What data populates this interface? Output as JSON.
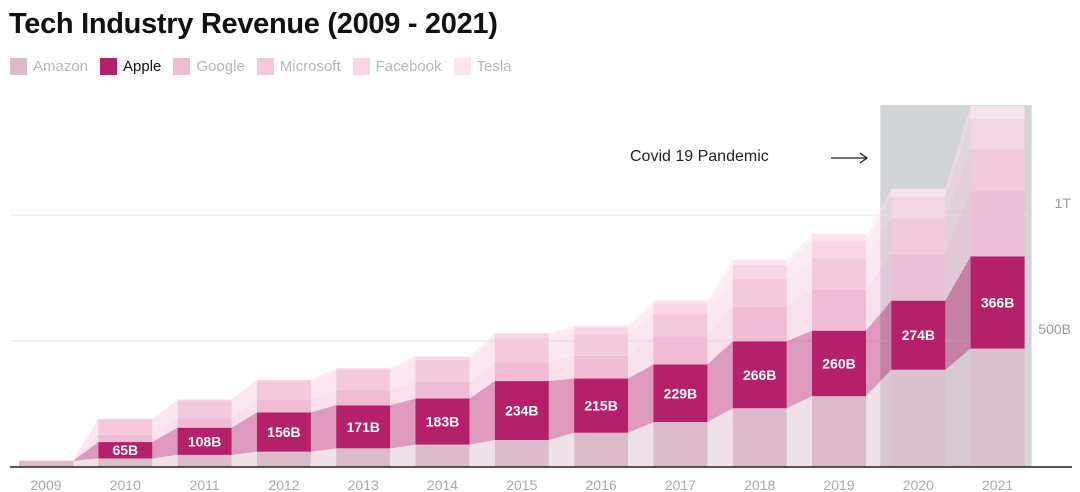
{
  "chart_data": {
    "type": "bar",
    "stacked": true,
    "title": "Tech Industry Revenue (2009 - 2021)",
    "categories": [
      "2009",
      "2010",
      "2011",
      "2012",
      "2013",
      "2014",
      "2015",
      "2016",
      "2017",
      "2018",
      "2019",
      "2020",
      "2021"
    ],
    "highlight_series": "Apple",
    "series": [
      {
        "name": "Amazon",
        "color": "#dcbccb",
        "values": [
          25,
          34,
          48,
          61,
          74,
          89,
          107,
          136,
          178,
          233,
          281,
          386,
          470
        ]
      },
      {
        "name": "Apple",
        "color": "#b5206b",
        "values": [
          0,
          65,
          108,
          156,
          171,
          183,
          234,
          215,
          229,
          266,
          260,
          274,
          366
        ]
      },
      {
        "name": "Google",
        "color": "#f0bcd3",
        "values": [
          0,
          29,
          38,
          50,
          60,
          66,
          75,
          90,
          111,
          137,
          162,
          183,
          258
        ]
      },
      {
        "name": "Microsoft",
        "color": "#f5c9dc",
        "values": [
          0,
          62,
          70,
          74,
          78,
          87,
          94,
          85,
          90,
          110,
          126,
          143,
          168
        ]
      },
      {
        "name": "Facebook",
        "color": "#f8d6e6",
        "values": [
          0,
          2,
          4,
          5,
          8,
          12,
          18,
          28,
          41,
          56,
          71,
          86,
          118
        ]
      },
      {
        "name": "Tesla",
        "color": "#fbe6f0",
        "values": [
          0,
          0,
          0,
          0,
          2,
          3,
          4,
          7,
          12,
          21,
          25,
          32,
          54
        ]
      }
    ],
    "apple_labels": [
      "",
      "65B",
      "108B",
      "156B",
      "171B",
      "183B",
      "234B",
      "215B",
      "229B",
      "266B",
      "260B",
      "274B",
      "366B"
    ],
    "y_ticks": [
      {
        "value": 500,
        "label": "500B"
      },
      {
        "value": 1000,
        "label": "1T"
      }
    ],
    "ylim": [
      0,
      1440
    ],
    "annotation": {
      "text": "Covid 19 Pandemic",
      "highlight_categories": [
        "2020",
        "2021"
      ]
    },
    "xlabel": "",
    "ylabel": ""
  },
  "legend": [
    {
      "label": "Amazon",
      "color": "#dcbccb",
      "active": false
    },
    {
      "label": "Apple",
      "color": "#b5206b",
      "active": true
    },
    {
      "label": "Google",
      "color": "#f0bcd3",
      "active": false
    },
    {
      "label": "Microsoft",
      "color": "#f5c9dc",
      "active": false
    },
    {
      "label": "Facebook",
      "color": "#f8d6e6",
      "active": false
    },
    {
      "label": "Tesla",
      "color": "#fbe6f0",
      "active": false
    }
  ]
}
